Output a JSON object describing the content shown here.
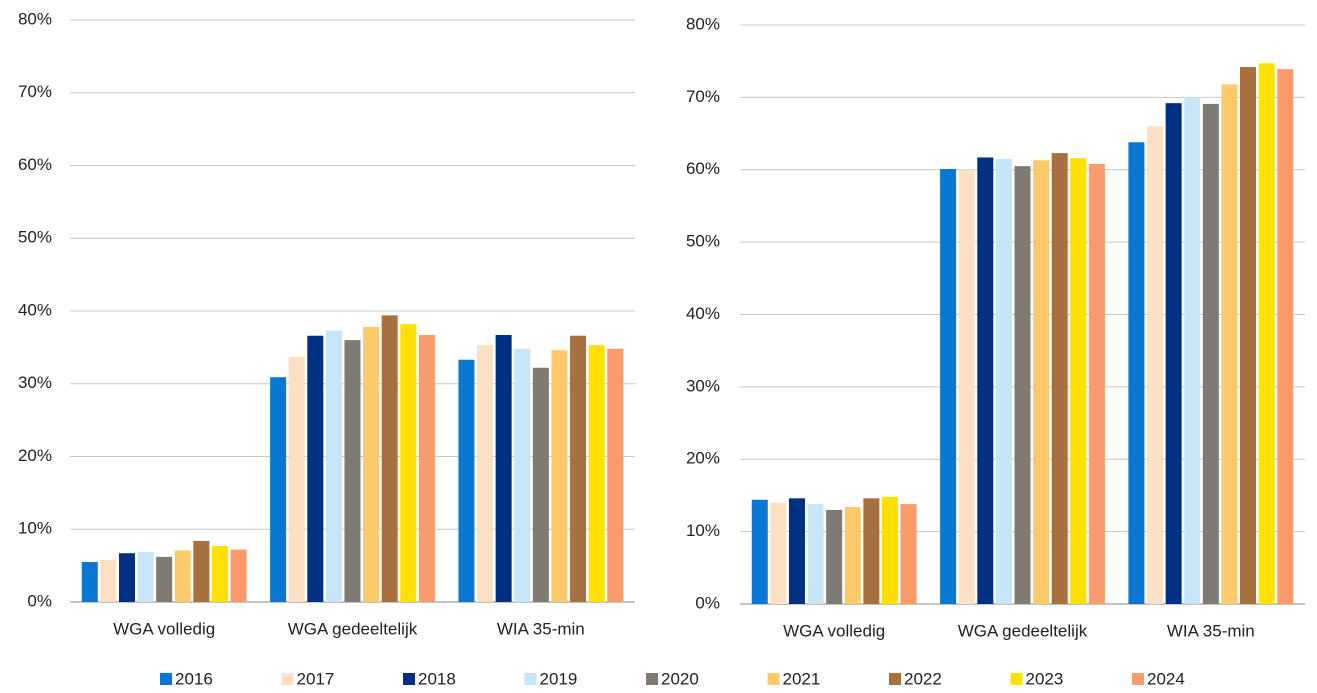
{
  "chart_data": [
    {
      "type": "bar",
      "categories": [
        "WGA volledig",
        "WGA gedeeltelijk",
        "WIA 35-min"
      ],
      "ylim": [
        0,
        80
      ],
      "yticks": [
        {
          "value": 0,
          "label": "0%"
        },
        {
          "value": 10,
          "label": "10%"
        },
        {
          "value": 20,
          "label": "20%"
        },
        {
          "value": 30,
          "label": "30%"
        },
        {
          "value": 40,
          "label": "40%"
        },
        {
          "value": 50,
          "label": "50%"
        },
        {
          "value": 60,
          "label": "60%"
        },
        {
          "value": 70,
          "label": "70%"
        },
        {
          "value": 80,
          "label": "80%"
        }
      ],
      "grid": true,
      "legend": "bottom",
      "series": [
        {
          "name": "2016",
          "color": "#0a78d2",
          "values": [
            5.5,
            30.9,
            33.3
          ]
        },
        {
          "name": "2017",
          "color": "#fce0c4",
          "values": [
            5.8,
            33.7,
            35.3
          ]
        },
        {
          "name": "2018",
          "color": "#003082",
          "values": [
            6.7,
            36.6,
            36.7
          ]
        },
        {
          "name": "2019",
          "color": "#c6e6f8",
          "values": [
            6.9,
            37.3,
            34.8
          ]
        },
        {
          "name": "2020",
          "color": "#7f7b73",
          "values": [
            6.2,
            36.0,
            32.2
          ]
        },
        {
          "name": "2021",
          "color": "#fcc96b",
          "values": [
            7.1,
            37.8,
            34.6
          ]
        },
        {
          "name": "2022",
          "color": "#a8703f",
          "values": [
            8.4,
            39.4,
            36.6
          ]
        },
        {
          "name": "2023",
          "color": "#ffe000",
          "values": [
            7.7,
            38.2,
            35.3
          ]
        },
        {
          "name": "2024",
          "color": "#fb9a6a",
          "values": [
            7.2,
            36.7,
            34.8
          ]
        }
      ]
    },
    {
      "type": "bar",
      "categories": [
        "WGA volledig",
        "WGA gedeeltelijk",
        "WIA 35-min"
      ],
      "ylim": [
        0,
        80
      ],
      "yticks": [
        {
          "value": 0,
          "label": "0%"
        },
        {
          "value": 10,
          "label": "10%"
        },
        {
          "value": 20,
          "label": "20%"
        },
        {
          "value": 30,
          "label": "30%"
        },
        {
          "value": 40,
          "label": "40%"
        },
        {
          "value": 50,
          "label": "50%"
        },
        {
          "value": 60,
          "label": "60%"
        },
        {
          "value": 70,
          "label": "70%"
        },
        {
          "value": 80,
          "label": "80%"
        }
      ],
      "grid": true,
      "series": [
        {
          "color": "#0a78d2",
          "values": [
            14.4,
            60.1,
            63.8
          ]
        },
        {
          "color": "#fce0c4",
          "values": [
            14.0,
            60.0,
            66.0
          ]
        },
        {
          "color": "#003082",
          "values": [
            14.6,
            61.7,
            69.2
          ]
        },
        {
          "color": "#c6e6f8",
          "values": [
            13.8,
            61.5,
            70.0
          ]
        },
        {
          "color": "#7f7b73",
          "values": [
            13.0,
            60.5,
            69.1
          ]
        },
        {
          "color": "#fcc96b",
          "values": [
            13.4,
            61.3,
            71.8
          ]
        },
        {
          "color": "#a8703f",
          "values": [
            14.6,
            62.3,
            74.2
          ]
        },
        {
          "color": "#ffe000",
          "values": [
            14.8,
            61.6,
            74.7
          ]
        },
        {
          "color": "#fb9a6a",
          "values": [
            13.8,
            60.8,
            73.9
          ]
        }
      ]
    }
  ]
}
